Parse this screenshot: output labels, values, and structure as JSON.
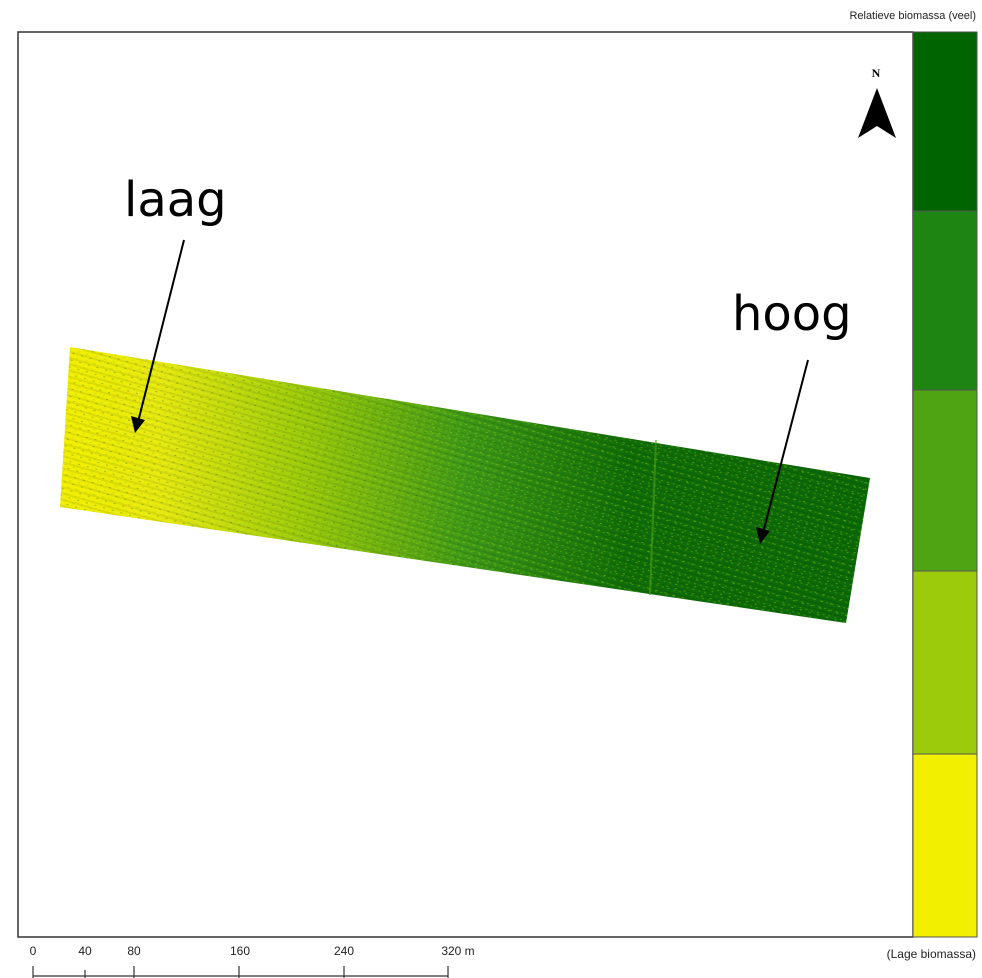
{
  "legend": {
    "top_label": "Relatieve biomassa (veel)",
    "bottom_label": "(Lage biomassa)",
    "classes": [
      {
        "level": 5,
        "color": "#006400"
      },
      {
        "level": 4,
        "color": "#1f8512"
      },
      {
        "level": 3,
        "color": "#4fa414"
      },
      {
        "level": 2,
        "color": "#9ccb0c"
      },
      {
        "level": 1,
        "color": "#f2ef00"
      }
    ]
  },
  "north_arrow": {
    "label": "N"
  },
  "annotations": {
    "low": "laag",
    "high": "hoog"
  },
  "scale_bar": {
    "ticks": [
      "0",
      "40",
      "80",
      "160",
      "240",
      "320 m"
    ]
  },
  "colors": {
    "frame": "#333333",
    "yellow": "#f2ef00",
    "dark_green": "#006400"
  }
}
